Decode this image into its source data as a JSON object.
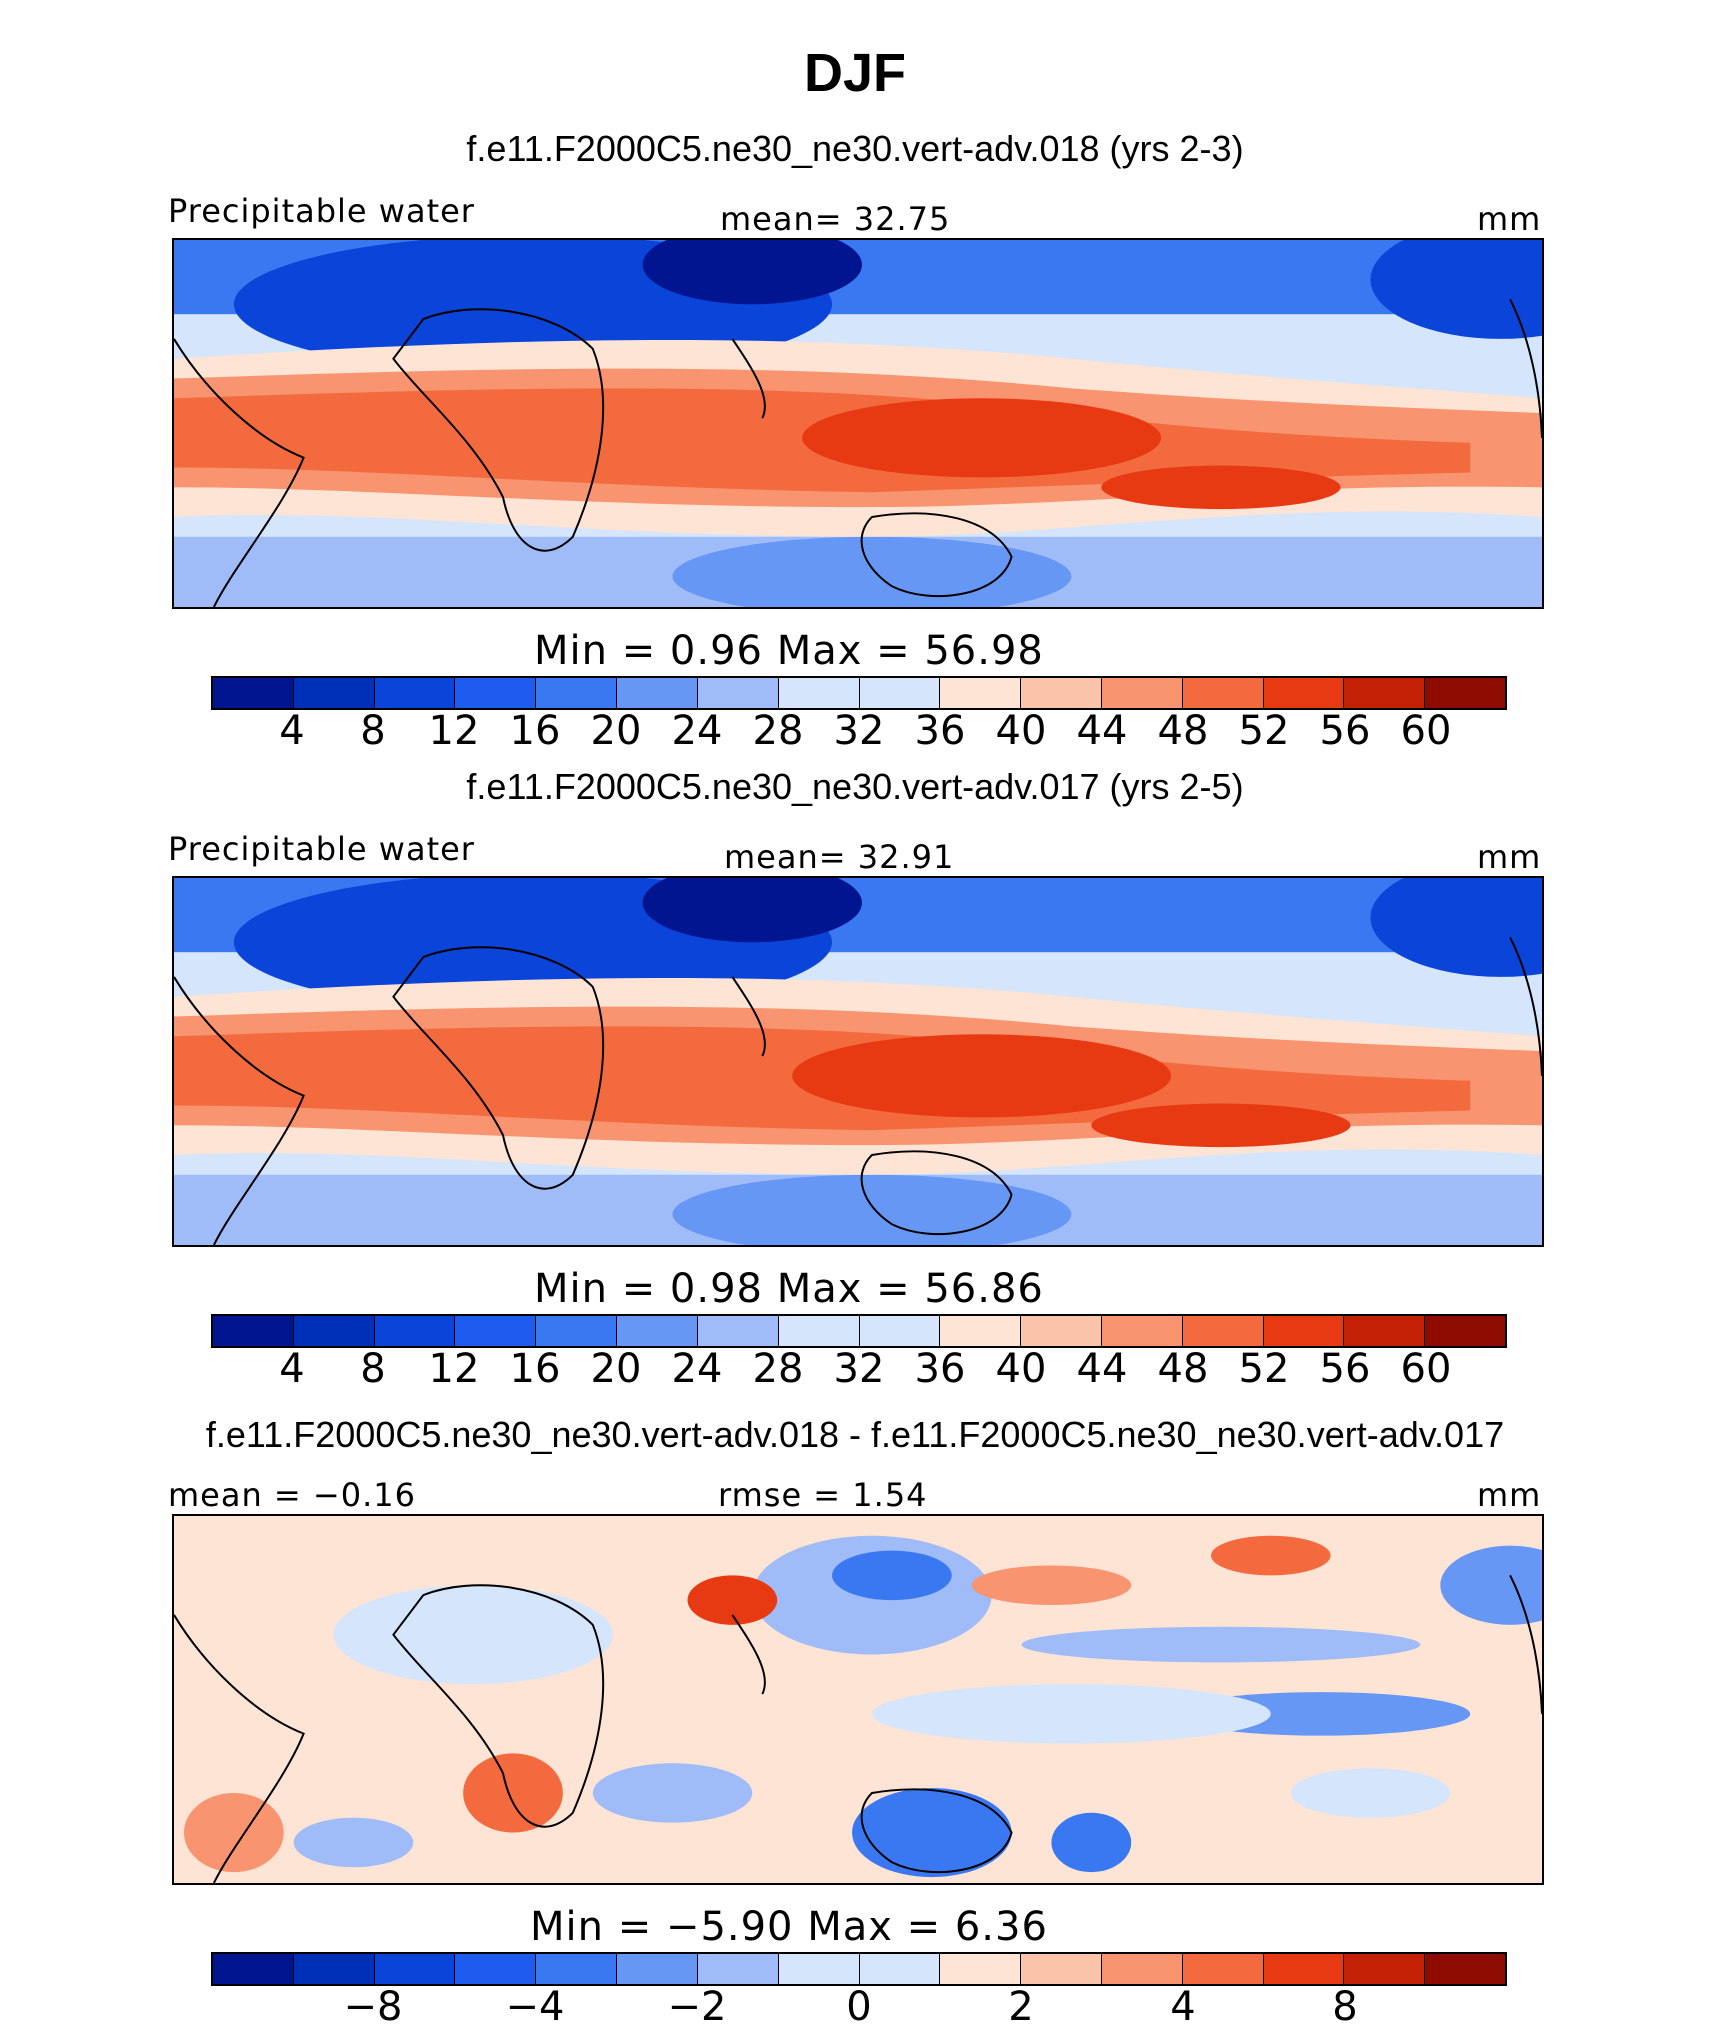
{
  "title": "DJF",
  "colors": {
    "levels": [
      "#00158f",
      "#0030b8",
      "#0b44d8",
      "#1e5cf0",
      "#3a78f2",
      "#6797f4",
      "#9fbcf8",
      "#d5e5fb",
      "#fde4d5",
      "#fbc3a8",
      "#f8946f",
      "#f46a3f",
      "#e83a12",
      "#c42005",
      "#8e0b00"
    ]
  },
  "panels": [
    {
      "title": "f.e11.F2000C5.ne30_ne30.vert-adv.018 (yrs 2-3)",
      "variable": "Precipitable water",
      "stat_left": "",
      "stat_center": "mean=   32.75",
      "units": "mm",
      "minmax": "Min  =    0.96  Max  =   56.98",
      "ticks": [
        "4",
        "8",
        "12",
        "16",
        "20",
        "24",
        "28",
        "32",
        "36",
        "40",
        "44",
        "48",
        "52",
        "56",
        "60"
      ]
    },
    {
      "title": "f.e11.F2000C5.ne30_ne30.vert-adv.017 (yrs 2-5)",
      "variable": "Precipitable water",
      "stat_left": "",
      "stat_center": "mean=   32.91",
      "units": "mm",
      "minmax": "Min  =    0.98  Max  =   56.86",
      "ticks": [
        "4",
        "8",
        "12",
        "16",
        "20",
        "24",
        "28",
        "32",
        "36",
        "40",
        "44",
        "48",
        "52",
        "56",
        "60"
      ]
    },
    {
      "title": "f.e11.F2000C5.ne30_ne30.vert-adv.018 - f.e11.F2000C5.ne30_ne30.vert-adv.017",
      "variable": "",
      "stat_left": "mean =   −0.16",
      "stat_center": "rmse =    1.54",
      "units": "mm",
      "minmax": "Min  =   −5.90  Max  =     6.36",
      "ticks": [
        "−8",
        "−4",
        "−2",
        "0",
        "2",
        "4",
        "8"
      ]
    }
  ]
}
